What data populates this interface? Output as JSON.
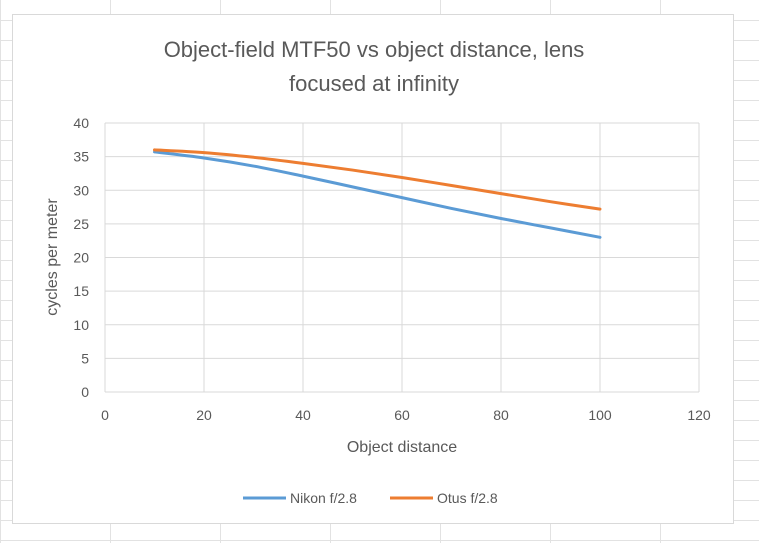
{
  "colors": {
    "sheet_grid": "#e2e2e2",
    "chart_border": "#d9d9d9",
    "gridline": "#d9d9d9",
    "axis_text": "#595959",
    "title_text": "#595959"
  },
  "chart_data": {
    "type": "line",
    "title_line1": "Object-field MTF50 vs object distance, lens",
    "title_line2": "focused at infinity",
    "xlabel": "Object distance",
    "ylabel": "cycles per meter",
    "xlim": [
      0,
      120
    ],
    "ylim": [
      0,
      40
    ],
    "xticks": [
      0,
      20,
      40,
      60,
      80,
      100,
      120
    ],
    "yticks": [
      0,
      5,
      10,
      15,
      20,
      25,
      30,
      35,
      40
    ],
    "grid": "vertical and horizontal major gridlines",
    "legend_position": "bottom",
    "series": [
      {
        "name": "Nikon f/2.8",
        "color": "#5b9bd5",
        "x": [
          10,
          20,
          30,
          40,
          50,
          60,
          70,
          80,
          90,
          100
        ],
        "y": [
          35.7,
          34.8,
          33.6,
          32.1,
          30.5,
          28.9,
          27.3,
          25.8,
          24.4,
          23.0
        ]
      },
      {
        "name": "Otus f/2.8",
        "color": "#ed7d31",
        "x": [
          10,
          20,
          30,
          40,
          50,
          60,
          70,
          80,
          90,
          100
        ],
        "y": [
          36.0,
          35.6,
          34.9,
          34.0,
          33.0,
          31.9,
          30.7,
          29.5,
          28.3,
          27.2
        ]
      }
    ]
  }
}
